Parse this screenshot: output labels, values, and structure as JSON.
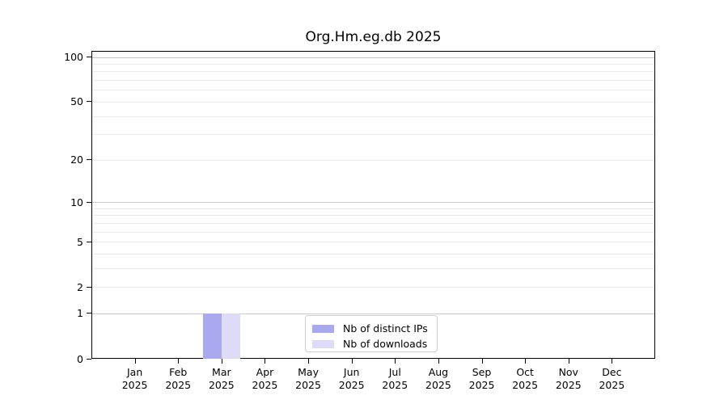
{
  "chart_data": {
    "type": "bar",
    "title": "Org.Hm.eg.db 2025",
    "categories": [
      "Jan 2025",
      "Feb 2025",
      "Mar 2025",
      "Apr 2025",
      "May 2025",
      "Jun 2025",
      "Jul 2025",
      "Aug 2025",
      "Sep 2025",
      "Oct 2025",
      "Nov 2025",
      "Dec 2025"
    ],
    "series": [
      {
        "name": "Nb of distinct IPs",
        "color": "#a9a9f0",
        "values": [
          0,
          0,
          1,
          0,
          0,
          0,
          0,
          0,
          0,
          0,
          0,
          0
        ]
      },
      {
        "name": "Nb of downloads",
        "color": "#dcdcf8",
        "values": [
          0,
          0,
          1,
          0,
          0,
          0,
          0,
          0,
          0,
          0,
          0,
          0
        ]
      }
    ],
    "xlabel": "",
    "ylabel": "",
    "yscale": "log1p",
    "ylim": [
      0,
      110
    ],
    "yticks": [
      0,
      1,
      2,
      5,
      10,
      20,
      50,
      100
    ],
    "major_gridlines": [
      1,
      10,
      100
    ],
    "minor_gridlines": [
      2,
      3,
      4,
      5,
      6,
      7,
      8,
      9,
      20,
      30,
      40,
      50,
      60,
      70,
      80,
      90
    ],
    "grid": "on",
    "legend_position": "bottom-center"
  },
  "colors": {
    "axis": "#000000",
    "major_grid": "#c9c9c9",
    "minor_grid": "#ececec",
    "legend_border": "#cccccc",
    "background": "#ffffff"
  }
}
